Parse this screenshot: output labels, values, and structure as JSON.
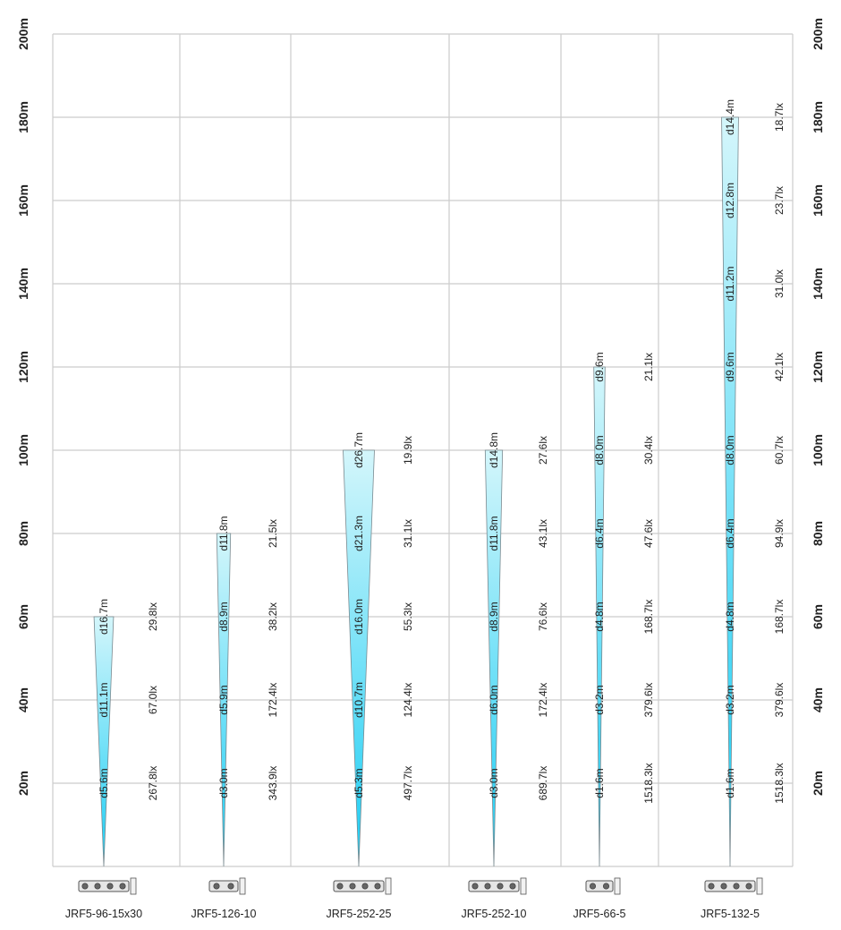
{
  "chart_data": {
    "type": "beam-diagram",
    "ylim": [
      0,
      200
    ],
    "y_ticks": [
      {
        "value": 20,
        "label": "20m"
      },
      {
        "value": 40,
        "label": "40m"
      },
      {
        "value": 60,
        "label": "60m"
      },
      {
        "value": 80,
        "label": "80m"
      },
      {
        "value": 100,
        "label": "100m"
      },
      {
        "value": 120,
        "label": "120m"
      },
      {
        "value": 140,
        "label": "140m"
      },
      {
        "value": 160,
        "label": "160m"
      },
      {
        "value": 180,
        "label": "180m"
      },
      {
        "value": 200,
        "label": "200m"
      }
    ],
    "grid": true,
    "beam_colors": {
      "top": "#d4f6fb",
      "bottom": "#19cdf4",
      "edge": "#7a8a90"
    },
    "axis_label_color": "#222222",
    "series": [
      {
        "name": "JRF5-96-15x30",
        "max_distance": 60,
        "points": [
          {
            "distance": 20,
            "diameter": "d5.6m",
            "lux": "267.8lx"
          },
          {
            "distance": 40,
            "diameter": "d11.1m",
            "lux": "67.0lx"
          },
          {
            "distance": 60,
            "diameter": "d16.7m",
            "lux": "29.8lx"
          }
        ]
      },
      {
        "name": "JRF5-126-10",
        "max_distance": 80,
        "points": [
          {
            "distance": 20,
            "diameter": "d3.0m",
            "lux": "343.9lx"
          },
          {
            "distance": 40,
            "diameter": "d5.9m",
            "lux": "172.4lx"
          },
          {
            "distance": 60,
            "diameter": "d8.9m",
            "lux": "38.2lx"
          },
          {
            "distance": 80,
            "diameter": "d11.8m",
            "lux": "21.5lx"
          }
        ]
      },
      {
        "name": "JRF5-252-25",
        "max_distance": 100,
        "points": [
          {
            "distance": 20,
            "diameter": "d5.3m",
            "lux": "497.7lx"
          },
          {
            "distance": 40,
            "diameter": "d10.7m",
            "lux": "124.4lx"
          },
          {
            "distance": 60,
            "diameter": "d16.0m",
            "lux": "55.3lx"
          },
          {
            "distance": 80,
            "diameter": "d21.3m",
            "lux": "31.1lx"
          },
          {
            "distance": 100,
            "diameter": "d26.7m",
            "lux": "19.9lx"
          }
        ]
      },
      {
        "name": "JRF5-252-10",
        "max_distance": 100,
        "points": [
          {
            "distance": 20,
            "diameter": "d3.0m",
            "lux": "689.7lx"
          },
          {
            "distance": 40,
            "diameter": "d6.0m",
            "lux": "172.4lx"
          },
          {
            "distance": 60,
            "diameter": "d8.9m",
            "lux": "76.6lx"
          },
          {
            "distance": 80,
            "diameter": "d11.8m",
            "lux": "43.1lx"
          },
          {
            "distance": 100,
            "diameter": "d14.8m",
            "lux": "27.6lx"
          }
        ]
      },
      {
        "name": "JRF5-66-5",
        "max_distance": 120,
        "points": [
          {
            "distance": 20,
            "diameter": "d1.6m",
            "lux": "1518.3lx"
          },
          {
            "distance": 40,
            "diameter": "d3.2m",
            "lux": "379.6lx"
          },
          {
            "distance": 60,
            "diameter": "d4.8m",
            "lux": "168.7lx"
          },
          {
            "distance": 80,
            "diameter": "d6.4m",
            "lux": "47.6lx"
          },
          {
            "distance": 100,
            "diameter": "d8.0m",
            "lux": "30.4lx"
          },
          {
            "distance": 120,
            "diameter": "d9.6m",
            "lux": "21.1lx"
          }
        ]
      },
      {
        "name": "JRF5-132-5",
        "max_distance": 180,
        "points": [
          {
            "distance": 20,
            "diameter": "d1.6m",
            "lux": "1518.3lx"
          },
          {
            "distance": 40,
            "diameter": "d3.2m",
            "lux": "379.6lx"
          },
          {
            "distance": 60,
            "diameter": "d4.8m",
            "lux": "168.7lx"
          },
          {
            "distance": 80,
            "diameter": "d6.4m",
            "lux": "94.9lx"
          },
          {
            "distance": 100,
            "diameter": "d8.0m",
            "lux": "60.7lx"
          },
          {
            "distance": 120,
            "diameter": "d9.6m",
            "lux": "42.1lx"
          },
          {
            "distance": 140,
            "diameter": "d11.2m",
            "lux": "31.0lx"
          },
          {
            "distance": 160,
            "diameter": "d12.8m",
            "lux": "23.7lx"
          },
          {
            "distance": 180,
            "diameter": "d14.4m",
            "lux": "18.7lx"
          }
        ]
      }
    ]
  }
}
